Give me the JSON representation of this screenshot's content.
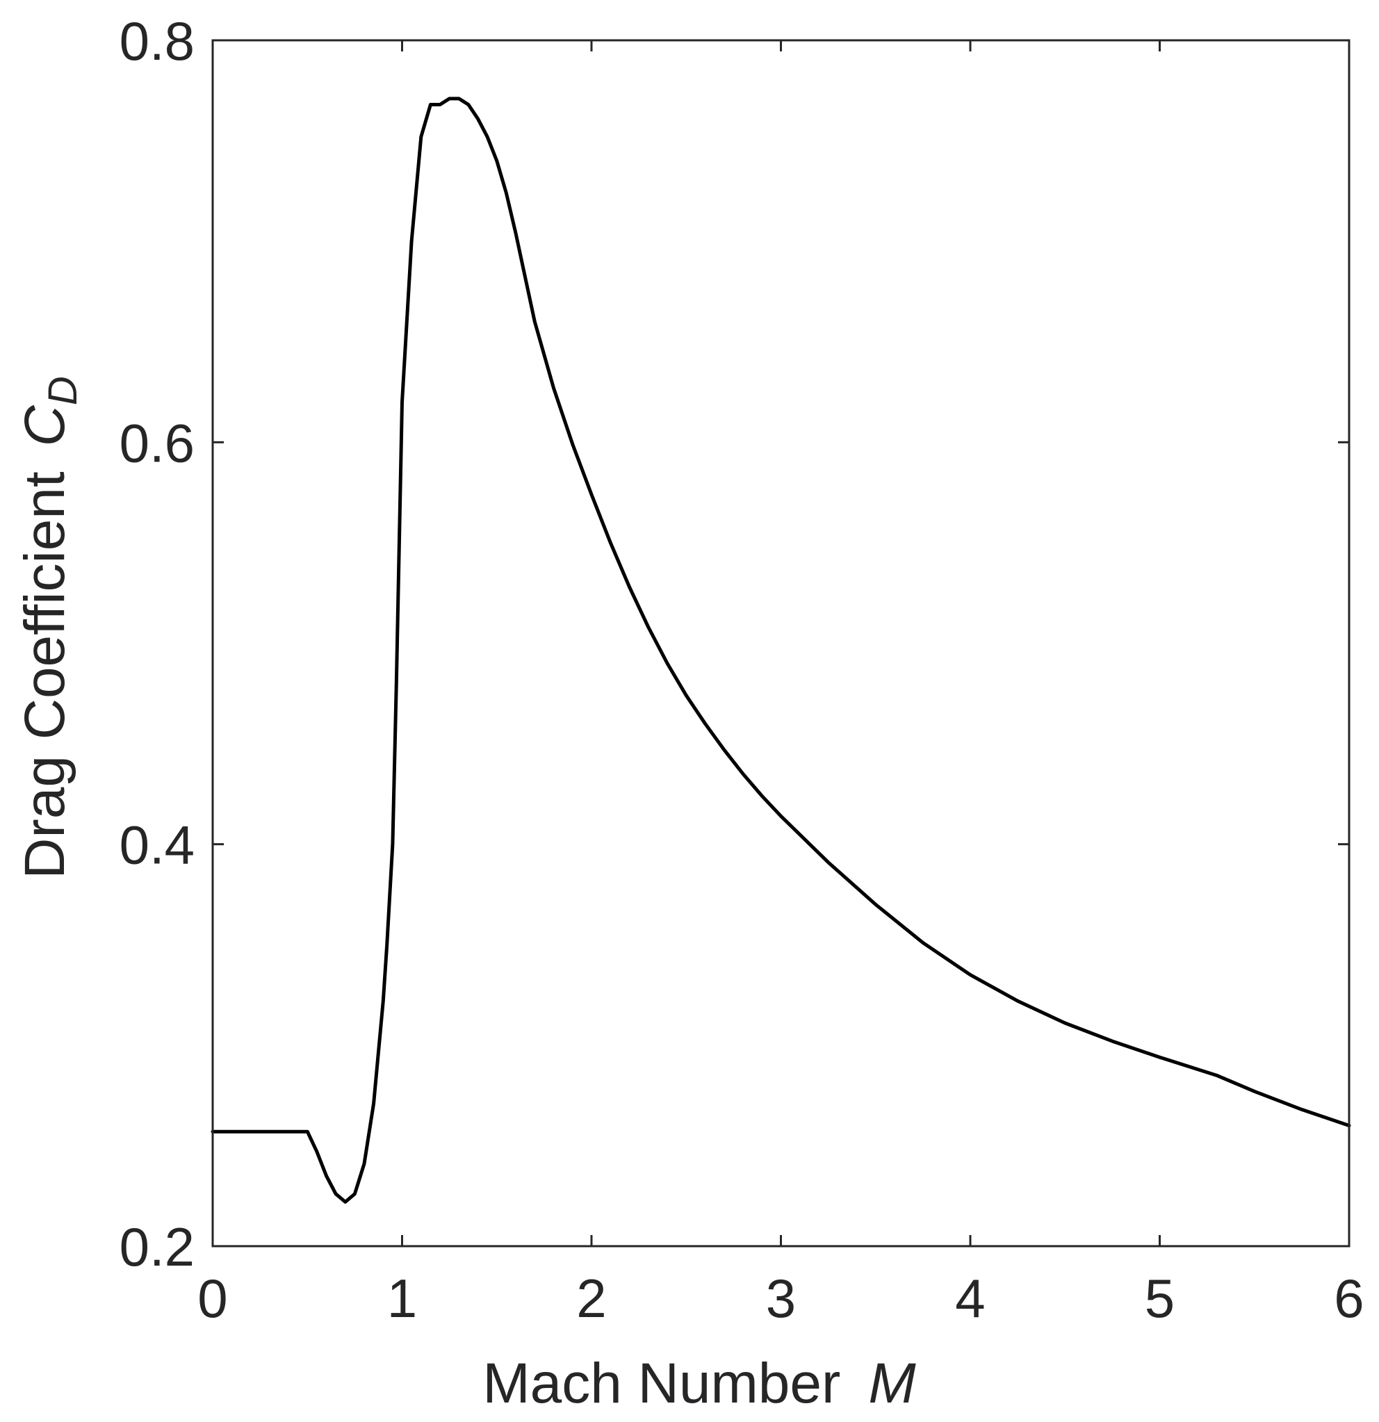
{
  "chart_data": {
    "type": "line",
    "xlabel": "Mach Number",
    "xlabel_symbol": "M",
    "ylabel": "Drag Coefficient",
    "ylabel_symbol": "C",
    "ylabel_subscript": "D",
    "xlim": [
      0,
      6
    ],
    "ylim": [
      0.2,
      0.8
    ],
    "xticks": [
      0,
      1,
      2,
      3,
      4,
      5,
      6
    ],
    "yticks": [
      0.2,
      0.4,
      0.6,
      0.8
    ],
    "xtick_labels": [
      "0",
      "1",
      "2",
      "3",
      "4",
      "5",
      "6"
    ],
    "ytick_labels": [
      "0.2",
      "0.4",
      "0.6",
      "0.8"
    ],
    "grid": false,
    "line_color": "#000000",
    "series": [
      {
        "x": [
          0,
          0.5,
          0.55,
          0.6,
          0.65,
          0.7,
          0.75,
          0.8,
          0.85,
          0.9,
          0.92,
          0.95,
          0.97,
          1.0,
          1.05,
          1.1,
          1.15,
          1.2,
          1.25,
          1.3,
          1.35,
          1.4,
          1.45,
          1.5,
          1.55,
          1.6,
          1.7,
          1.8,
          1.9,
          2.0,
          2.1,
          2.2,
          2.3,
          2.4,
          2.5,
          2.6,
          2.7,
          2.8,
          2.9,
          3.0,
          3.25,
          3.5,
          3.75,
          4.0,
          4.25,
          4.5,
          4.75,
          5.0,
          5.3,
          5.5,
          5.75,
          6.0
        ],
        "y": [
          0.257,
          0.257,
          0.247,
          0.235,
          0.226,
          0.222,
          0.226,
          0.241,
          0.271,
          0.322,
          0.35,
          0.4,
          0.48,
          0.62,
          0.7,
          0.752,
          0.768,
          0.768,
          0.771,
          0.771,
          0.768,
          0.761,
          0.752,
          0.74,
          0.724,
          0.704,
          0.66,
          0.627,
          0.599,
          0.574,
          0.55,
          0.528,
          0.508,
          0.49,
          0.474,
          0.46,
          0.447,
          0.435,
          0.424,
          0.414,
          0.391,
          0.37,
          0.351,
          0.335,
          0.322,
          0.311,
          0.302,
          0.294,
          0.285,
          0.277,
          0.268,
          0.26
        ]
      }
    ]
  }
}
